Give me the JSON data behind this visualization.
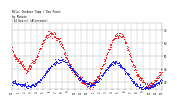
{
  "title_line1": "Milw. Outdoor Temp / Dew Point",
  "title_line2": "by Minute",
  "title_line3": "(24 Hours) (Alternate)",
  "bg_color": "#ffffff",
  "plot_bg_color": "#ffffff",
  "temp_color": "#ff0000",
  "dew_color": "#0000ff",
  "grid_color": "#aaaaaa",
  "title_color": "#000000",
  "tick_color": "#000000",
  "ylim": [
    25,
    75
  ],
  "xlim": [
    0,
    1440
  ],
  "ytick_vals": [
    30,
    40,
    50,
    60,
    70
  ],
  "ytick_labels": [
    "30",
    "40",
    "50",
    "60",
    "70"
  ],
  "temp_data": [
    55,
    53,
    51,
    50,
    49,
    48,
    47,
    46,
    45,
    44,
    43,
    42,
    41,
    40,
    39,
    40,
    41,
    42,
    43,
    44,
    45,
    46,
    47,
    48,
    50,
    52,
    54,
    56,
    58,
    60,
    62,
    63,
    64,
    65,
    66,
    67,
    67,
    68,
    68,
    67,
    67,
    66,
    65,
    64,
    63,
    62,
    61,
    60,
    58,
    56,
    54,
    52,
    50,
    48,
    46,
    44,
    42,
    40,
    39,
    38,
    37,
    36,
    35,
    34,
    33,
    33,
    32,
    32,
    31,
    30,
    30,
    29,
    29,
    29,
    28,
    28,
    28,
    29,
    30,
    31,
    32,
    33,
    34,
    35,
    37,
    39,
    41,
    43,
    45,
    47,
    49,
    51,
    53,
    55,
    57,
    59,
    60,
    62,
    63,
    64,
    65,
    66,
    66,
    67,
    67,
    66,
    65,
    64,
    62,
    60,
    58,
    56,
    53,
    50,
    48,
    46,
    44,
    42,
    40,
    38,
    36,
    35,
    34,
    33,
    32,
    31,
    30,
    29,
    28,
    28,
    27,
    27,
    27,
    28,
    28,
    29,
    30,
    31,
    32,
    33,
    34,
    35,
    36,
    37,
    38
  ],
  "dew_data": [
    30,
    30,
    30,
    30,
    29,
    29,
    29,
    29,
    28,
    28,
    28,
    28,
    28,
    27,
    27,
    27,
    27,
    27,
    27,
    28,
    28,
    28,
    29,
    29,
    30,
    30,
    31,
    32,
    33,
    34,
    35,
    36,
    37,
    38,
    39,
    40,
    41,
    42,
    43,
    44,
    44,
    45,
    45,
    46,
    46,
    47,
    47,
    47,
    47,
    47,
    47,
    46,
    46,
    45,
    44,
    43,
    42,
    41,
    40,
    39,
    38,
    37,
    36,
    35,
    34,
    33,
    32,
    32,
    31,
    31,
    30,
    30,
    29,
    29,
    29,
    28,
    28,
    28,
    28,
    29,
    29,
    30,
    31,
    32,
    33,
    34,
    35,
    36,
    37,
    38,
    39,
    40,
    41,
    42,
    43,
    44,
    44,
    45,
    45,
    45,
    45,
    45,
    44,
    44,
    43,
    42,
    41,
    40,
    39,
    38,
    37,
    36,
    35,
    34,
    33,
    32,
    31,
    30,
    29,
    28,
    28,
    27,
    27,
    27,
    26,
    26,
    26,
    26,
    26,
    26,
    26,
    26,
    26,
    27,
    27,
    27,
    28,
    28,
    29,
    29,
    30,
    30,
    31,
    31,
    32
  ]
}
